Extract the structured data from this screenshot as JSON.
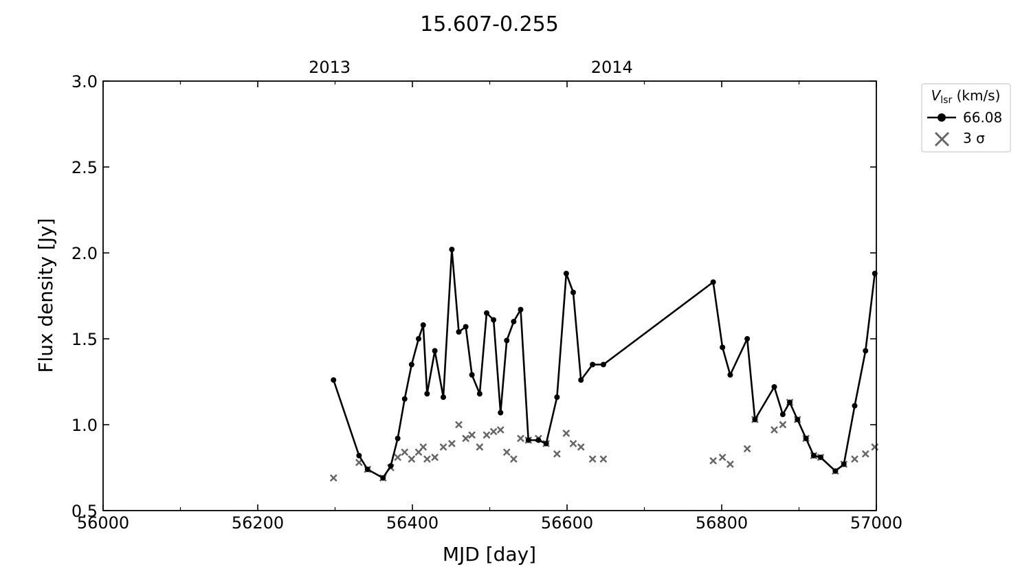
{
  "chart_data": {
    "type": "line",
    "title": "15.607-0.255",
    "xlabel": "MJD [day]",
    "ylabel": "Flux density [Jy]",
    "xlim": [
      56000,
      57000
    ],
    "ylim": [
      0.5,
      3.0
    ],
    "xticks": [
      56000,
      56200,
      56400,
      56600,
      56800,
      57000
    ],
    "xtick_labels": [
      "56000",
      "56200",
      "56400",
      "56600",
      "56800",
      "57000"
    ],
    "yticks": [
      0.5,
      1.0,
      1.5,
      2.0,
      2.5,
      3.0
    ],
    "ytick_labels": [
      "0.5",
      "1.0",
      "1.5",
      "2.0",
      "2.5",
      "3.0"
    ],
    "top_axis": {
      "labels": [
        {
          "mjd": 56293,
          "text": "2013"
        },
        {
          "mjd": 56658,
          "text": "2014"
        }
      ]
    },
    "legend": {
      "title_main": "V",
      "title_sub": "lsr",
      "title_unit": " (km/s)",
      "position": "outside-right-top",
      "entries": [
        {
          "label": "66.08",
          "style": "line-dot"
        },
        {
          "label": "3 σ",
          "style": "cross"
        }
      ]
    },
    "colors": {
      "series": "#000000",
      "sigma": "#666666"
    },
    "series": [
      {
        "name": "66.08",
        "x": [
          56298,
          56331,
          56342,
          56362,
          56372,
          56381,
          56390,
          56399,
          56408,
          56414,
          56419,
          56429,
          56440,
          56451,
          56460,
          56469,
          56477,
          56487,
          56496,
          56505,
          56514,
          56522,
          56531,
          56540,
          56550,
          56563,
          56573,
          56587,
          56599,
          56608,
          56618,
          56633,
          56647,
          56789,
          56801,
          56811,
          56833,
          56843,
          56868,
          56879,
          56888,
          56898,
          56909,
          56919,
          56928,
          56947,
          56958,
          56972,
          56986,
          56998
        ],
        "y": [
          1.26,
          0.82,
          0.74,
          0.69,
          0.76,
          0.92,
          1.15,
          1.35,
          1.5,
          1.58,
          1.18,
          1.43,
          1.16,
          2.02,
          1.54,
          1.57,
          1.29,
          1.18,
          1.65,
          1.61,
          1.07,
          1.49,
          1.6,
          1.67,
          0.91,
          0.91,
          0.89,
          1.16,
          1.88,
          1.77,
          1.26,
          1.35,
          1.35,
          1.83,
          1.45,
          1.29,
          1.5,
          1.03,
          1.22,
          1.06,
          1.13,
          1.03,
          0.92,
          0.82,
          0.81,
          0.73,
          0.77,
          1.11,
          1.43,
          1.88
        ]
      }
    ],
    "sigma_points": {
      "name": "3 σ",
      "x": [
        56298,
        56331,
        56342,
        56362,
        56372,
        56381,
        56390,
        56399,
        56408,
        56414,
        56419,
        56429,
        56440,
        56451,
        56460,
        56469,
        56477,
        56487,
        56496,
        56505,
        56514,
        56522,
        56531,
        56540,
        56550,
        56563,
        56573,
        56587,
        56599,
        56608,
        56618,
        56633,
        56647,
        56789,
        56801,
        56811,
        56833,
        56843,
        56868,
        56879,
        56888,
        56898,
        56909,
        56919,
        56928,
        56947,
        56958,
        56972,
        56986,
        56998
      ],
      "y": [
        0.69,
        0.78,
        0.74,
        0.69,
        0.75,
        0.81,
        0.84,
        0.8,
        0.84,
        0.87,
        0.8,
        0.81,
        0.87,
        0.89,
        1.0,
        0.92,
        0.94,
        0.87,
        0.94,
        0.96,
        0.97,
        0.84,
        0.8,
        0.92,
        0.91,
        0.92,
        0.89,
        0.83,
        0.95,
        0.89,
        0.87,
        0.8,
        0.8,
        0.79,
        0.81,
        0.77,
        0.86,
        1.03,
        0.97,
        1.0,
        1.13,
        1.03,
        0.92,
        0.82,
        0.81,
        0.73,
        0.77,
        0.8,
        0.83,
        0.87
      ]
    }
  }
}
